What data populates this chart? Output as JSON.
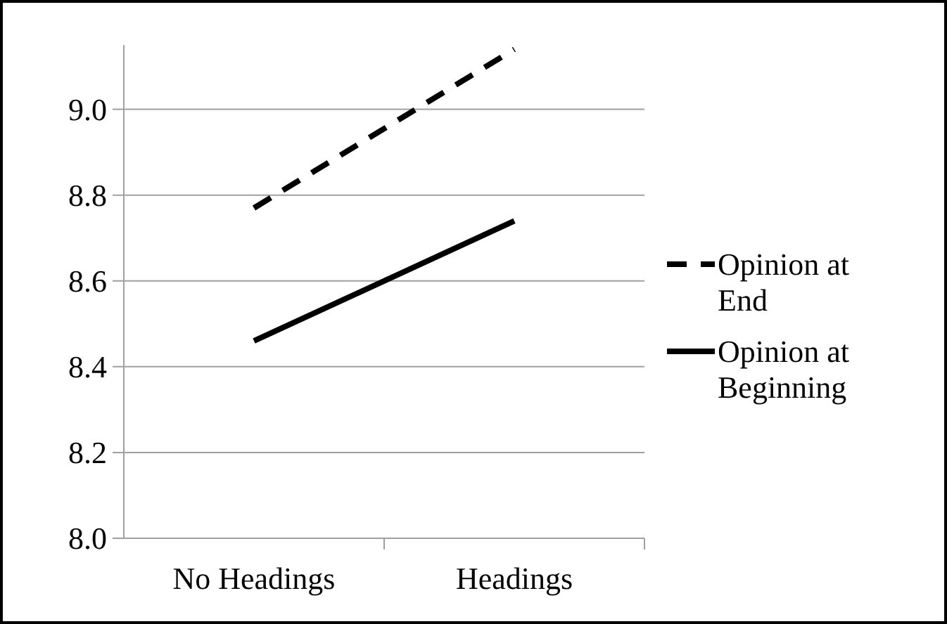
{
  "chart_data": {
    "type": "line",
    "categories": [
      "No Headings",
      "Headings"
    ],
    "series": [
      {
        "name": "Opinion at End",
        "color": "#000000",
        "values": [
          8.77,
          9.14
        ],
        "line_style": "dashed"
      },
      {
        "name": "Opinion at Beginning",
        "color": "#000000",
        "values": [
          8.46,
          8.74
        ],
        "line_style": "solid"
      }
    ],
    "ylim": [
      8.0,
      9.15
    ],
    "yticks": [
      {
        "value": 8,
        "label": "8.0"
      },
      {
        "value": 8.2,
        "label": "8.2"
      },
      {
        "value": 8.4,
        "label": "8.4"
      },
      {
        "value": 8.6,
        "label": "8.6"
      },
      {
        "value": 8.8,
        "label": "8.8"
      },
      {
        "value": 9,
        "label": "9.0"
      }
    ],
    "grid": "y",
    "legend": "right",
    "marker": "none"
  }
}
